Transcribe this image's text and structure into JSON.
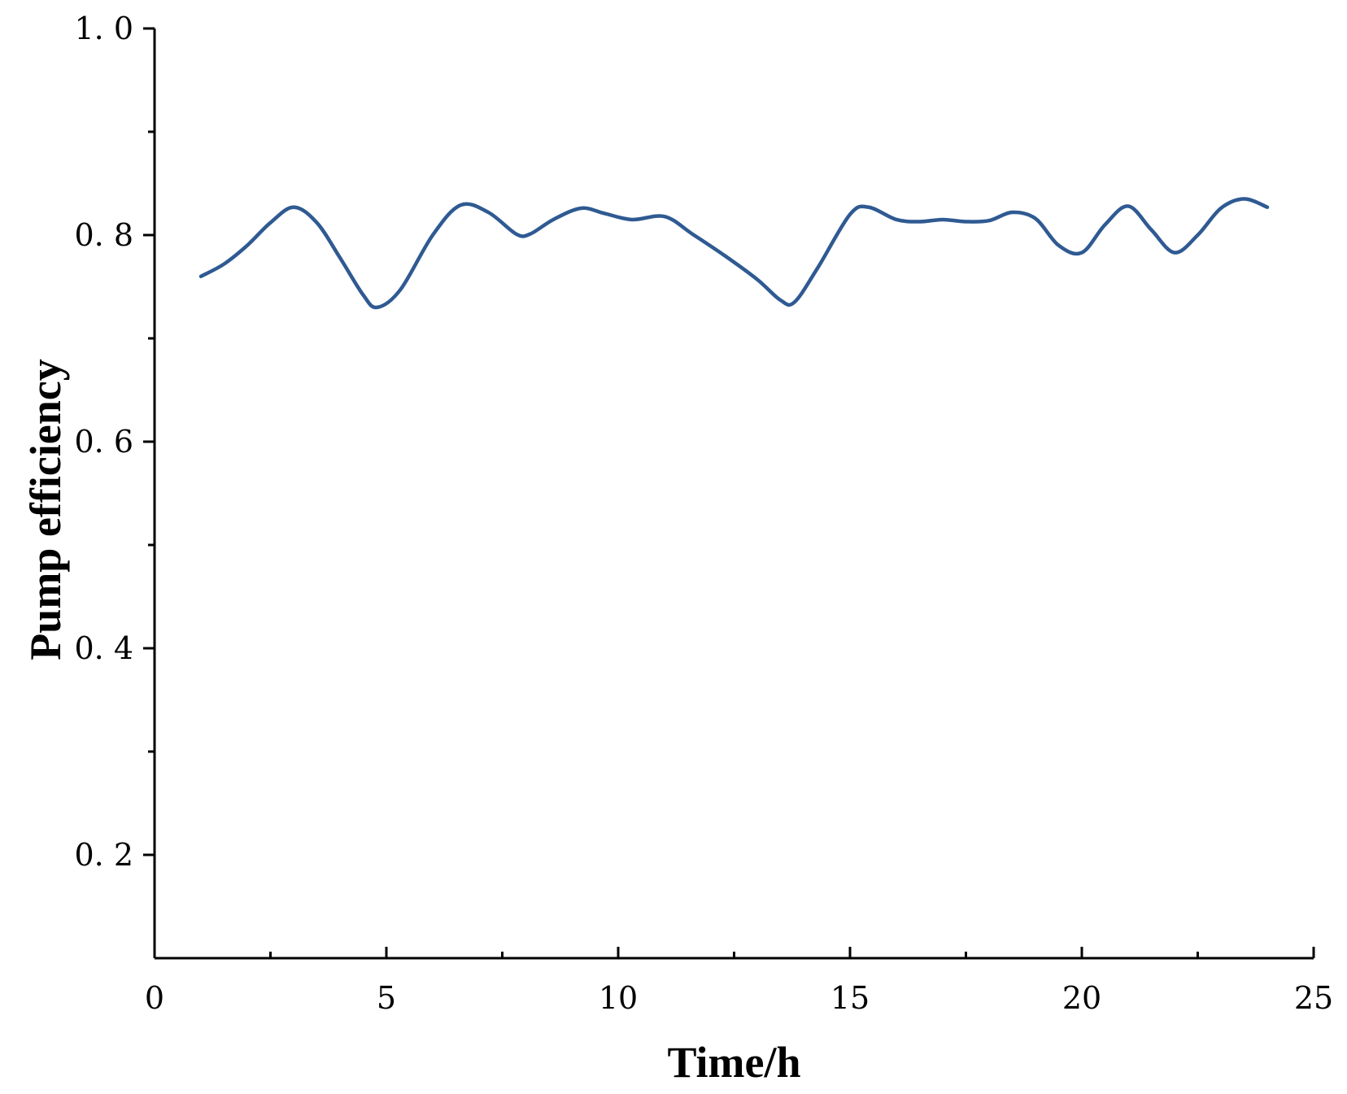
{
  "chart_data": {
    "type": "line",
    "title": "",
    "xlabel": "Time/h",
    "ylabel": "Pump efficiency",
    "xlim": [
      0,
      25
    ],
    "ylim": [
      0.1,
      1.0
    ],
    "x_ticks": [
      0,
      5,
      10,
      15,
      20,
      25
    ],
    "x_tick_labels": [
      "0",
      "5",
      "10",
      "15",
      "20",
      "25"
    ],
    "x_minor_ticks": [
      2.5,
      7.5,
      12.5,
      17.5,
      22.5
    ],
    "y_ticks": [
      0.2,
      0.4,
      0.6,
      0.8,
      1.0
    ],
    "y_tick_labels": [
      "0. 2",
      "0. 4",
      "0. 6",
      "0. 8",
      "1. 0"
    ],
    "y_minor_ticks": [
      0.3,
      0.5,
      0.7,
      0.9
    ],
    "grid": false,
    "legend": "none",
    "series": [
      {
        "color": "#2f5a92",
        "x": [
          1,
          1.5,
          2,
          2.5,
          3,
          3.5,
          4,
          4.5,
          4.8,
          5.3,
          6,
          6.6,
          7.2,
          7.8,
          8.1,
          8.6,
          9.2,
          9.7,
          10.3,
          11,
          11.6,
          12.3,
          13,
          13.5,
          13.8,
          14.3,
          15,
          15.4,
          16,
          16.5,
          17,
          17.5,
          18,
          18.5,
          19,
          19.5,
          20,
          20.5,
          21,
          21.5,
          22,
          22.5,
          23,
          23.5,
          24
        ],
        "y": [
          0.76,
          0.772,
          0.79,
          0.812,
          0.827,
          0.812,
          0.778,
          0.742,
          0.73,
          0.747,
          0.8,
          0.829,
          0.822,
          0.801,
          0.801,
          0.815,
          0.826,
          0.821,
          0.815,
          0.818,
          0.801,
          0.78,
          0.757,
          0.737,
          0.735,
          0.768,
          0.82,
          0.827,
          0.815,
          0.813,
          0.815,
          0.813,
          0.814,
          0.822,
          0.816,
          0.79,
          0.783,
          0.81,
          0.828,
          0.805,
          0.783,
          0.8,
          0.826,
          0.835,
          0.827
        ]
      }
    ]
  }
}
